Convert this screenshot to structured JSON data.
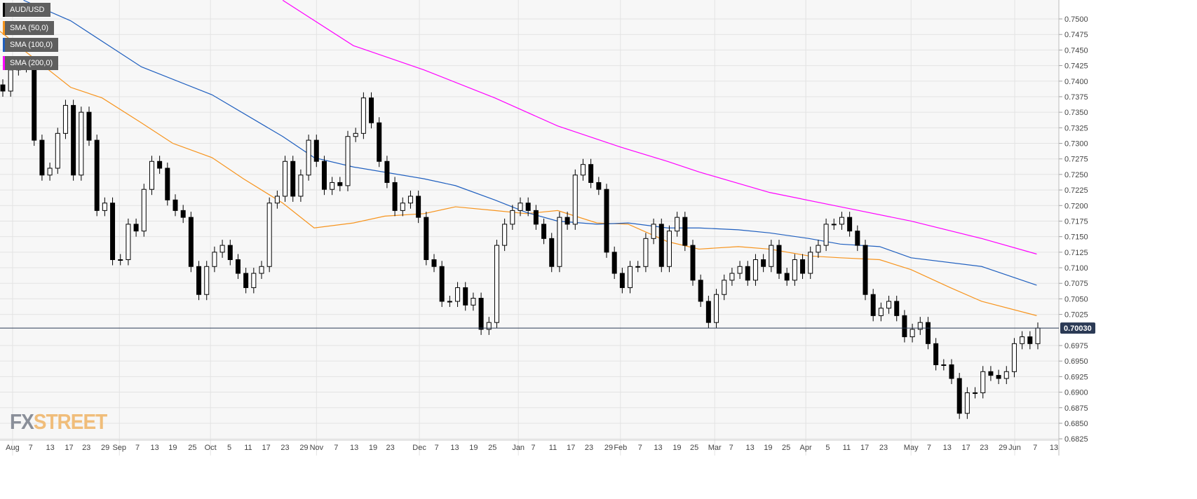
{
  "chart_data": {
    "type": "candlestick",
    "title": "AUD/USD",
    "legend": [
      {
        "label": "AUD/USD",
        "color": "#000000"
      },
      {
        "label": "SMA (50,0)",
        "color": "#f7941d"
      },
      {
        "label": "SMA (100,0)",
        "color": "#1f5fbf"
      },
      {
        "label": "SMA (200,0)",
        "color": "#ff00ff"
      }
    ],
    "legend_position": "top-left",
    "ylim": [
      0.6815,
      0.752
    ],
    "y_ticks": [
      "0.7500",
      "0.7475",
      "0.7450",
      "0.7425",
      "0.7400",
      "0.7375",
      "0.7350",
      "0.7325",
      "0.7300",
      "0.7275",
      "0.7250",
      "0.7225",
      "0.7200",
      "0.7175",
      "0.7150",
      "0.7125",
      "0.7100",
      "0.7075",
      "0.7050",
      "0.7025",
      "0.6975",
      "0.6950",
      "0.6925",
      "0.6900",
      "0.6875",
      "0.6850",
      "0.6825"
    ],
    "current_price": {
      "label": "0.70030",
      "value": 0.7003
    },
    "x_ticks": [
      [
        "Aug",
        1.6
      ],
      [
        "7",
        3.9
      ],
      [
        "13",
        6.4
      ],
      [
        "17",
        8.8
      ],
      [
        "23",
        11
      ],
      [
        "29",
        13.4
      ],
      [
        "Sep",
        15.2
      ],
      [
        "7",
        17.5
      ],
      [
        "13",
        19.7
      ],
      [
        "19",
        22
      ],
      [
        "25",
        24.5
      ],
      [
        "Oct",
        26.8
      ],
      [
        "5",
        29.2
      ],
      [
        "11",
        31.6
      ],
      [
        "17",
        33.9
      ],
      [
        "23",
        36.3
      ],
      [
        "29",
        38.7
      ],
      [
        "Nov",
        40.3
      ],
      [
        "7",
        42.8
      ],
      [
        "13",
        45.1
      ],
      [
        "19",
        47.5
      ],
      [
        "23",
        49.7
      ],
      [
        "Dec",
        53.4
      ],
      [
        "7",
        55.6
      ],
      [
        "13",
        57.9
      ],
      [
        "19",
        60.3
      ],
      [
        "25",
        62.7
      ],
      [
        "Jan",
        66
      ],
      [
        "7",
        67.9
      ],
      [
        "11",
        70.4
      ],
      [
        "17",
        72.7
      ],
      [
        "23",
        75
      ],
      [
        "29",
        77.5
      ],
      [
        "Feb",
        79
      ],
      [
        "7",
        81.5
      ],
      [
        "13",
        83.8
      ],
      [
        "19",
        86.2
      ],
      [
        "25",
        88.4
      ],
      [
        "Mar",
        91
      ],
      [
        "7",
        93.1
      ],
      [
        "13",
        95.5
      ],
      [
        "19",
        97.8
      ],
      [
        "25",
        100.1
      ],
      [
        "Apr",
        102.6
      ],
      [
        "5",
        105.4
      ],
      [
        "11",
        107.8
      ],
      [
        "17",
        110.1
      ],
      [
        "23",
        112.5
      ],
      [
        "May",
        116
      ],
      [
        "7",
        118.3
      ],
      [
        "13",
        120.6
      ],
      [
        "17",
        123
      ],
      [
        "23",
        125.3
      ],
      [
        "29",
        127.7
      ],
      [
        "Jun",
        129.2
      ],
      [
        "7",
        131.8
      ],
      [
        "13",
        134.2
      ]
    ],
    "closes": [
      0.7384,
      0.7418,
      0.7423,
      0.7429,
      0.7305,
      0.7249,
      0.726,
      0.7316,
      0.7361,
      0.7249,
      0.735,
      0.7305,
      0.7192,
      0.7204,
      0.7113,
      0.7113,
      0.717,
      0.7159,
      0.7226,
      0.7271,
      0.726,
      0.7209,
      0.7192,
      0.7181,
      0.7102,
      0.7057,
      0.7102,
      0.7125,
      0.7136,
      0.7113,
      0.7091,
      0.7068,
      0.7091,
      0.7102,
      0.7204,
      0.7215,
      0.7271,
      0.7215,
      0.7249,
      0.7305,
      0.7271,
      0.7226,
      0.7237,
      0.7232,
      0.7311,
      0.7316,
      0.7373,
      0.7333,
      0.7271,
      0.7237,
      0.7192,
      0.7204,
      0.7215,
      0.7181,
      0.7113,
      0.7102,
      0.7046,
      0.7046,
      0.7068,
      0.704,
      0.7051,
      0.7001,
      0.7012,
      0.7136,
      0.717,
      0.7192,
      0.7204,
      0.7192,
      0.717,
      0.7147,
      0.7102,
      0.7181,
      0.717,
      0.7249,
      0.7266,
      0.7237,
      0.7226,
      0.7125,
      0.7091,
      0.7068,
      0.7102,
      0.7102,
      0.7147,
      0.717,
      0.7102,
      0.7159,
      0.7181,
      0.7136,
      0.708,
      0.7046,
      0.7012,
      0.7057,
      0.708,
      0.7091,
      0.7102,
      0.708,
      0.7113,
      0.7102,
      0.7136,
      0.7091,
      0.708,
      0.7113,
      0.7091,
      0.7125,
      0.7136,
      0.717,
      0.717,
      0.7181,
      0.7159,
      0.7136,
      0.7057,
      0.7023,
      0.7035,
      0.7046,
      0.7023,
      0.6989,
      0.7001,
      0.7012,
      0.6978,
      0.6944,
      0.6944,
      0.6922,
      0.6866,
      0.6899,
      0.6899,
      0.6933,
      0.6927,
      0.6922,
      0.6933,
      0.6978,
      0.6989,
      0.6978,
      0.7003
    ],
    "sma50": [
      [
        0,
        0.748
      ],
      [
        9,
        0.739
      ],
      [
        13,
        0.7373
      ],
      [
        18,
        0.7333
      ],
      [
        22,
        0.73
      ],
      [
        27,
        0.7277
      ],
      [
        31,
        0.7243
      ],
      [
        36,
        0.7204
      ],
      [
        40,
        0.7164
      ],
      [
        45,
        0.7172
      ],
      [
        49,
        0.7183
      ],
      [
        54,
        0.7187
      ],
      [
        58,
        0.7198
      ],
      [
        63,
        0.7192
      ],
      [
        67,
        0.7187
      ],
      [
        71,
        0.7192
      ],
      [
        76,
        0.7172
      ],
      [
        80,
        0.717
      ],
      [
        85,
        0.7142
      ],
      [
        89,
        0.713
      ],
      [
        94,
        0.7134
      ],
      [
        98,
        0.713
      ],
      [
        103,
        0.7119
      ],
      [
        107,
        0.7116
      ],
      [
        112,
        0.7113
      ],
      [
        116,
        0.7097
      ],
      [
        121,
        0.7068
      ],
      [
        125,
        0.7046
      ],
      [
        132,
        0.7023
      ]
    ],
    "sma100": [
      [
        3,
        0.753
      ],
      [
        9,
        0.7497
      ],
      [
        18,
        0.7423
      ],
      [
        27,
        0.7378
      ],
      [
        36,
        0.7311
      ],
      [
        40,
        0.7277
      ],
      [
        45,
        0.7262
      ],
      [
        54,
        0.7243
      ],
      [
        58,
        0.7232
      ],
      [
        63,
        0.7209
      ],
      [
        67,
        0.7189
      ],
      [
        71,
        0.7175
      ],
      [
        76,
        0.717
      ],
      [
        80,
        0.7172
      ],
      [
        85,
        0.7164
      ],
      [
        89,
        0.7164
      ],
      [
        94,
        0.7161
      ],
      [
        98,
        0.7156
      ],
      [
        103,
        0.7147
      ],
      [
        107,
        0.7138
      ],
      [
        112,
        0.7134
      ],
      [
        116,
        0.7116
      ],
      [
        125,
        0.7102
      ],
      [
        132,
        0.7072
      ]
    ],
    "sma200": [
      [
        36,
        0.753
      ],
      [
        45,
        0.7457
      ],
      [
        54,
        0.7418
      ],
      [
        63,
        0.7373
      ],
      [
        71,
        0.7328
      ],
      [
        79,
        0.7294
      ],
      [
        85,
        0.7271
      ],
      [
        89,
        0.7254
      ],
      [
        98,
        0.7221
      ],
      [
        107,
        0.7198
      ],
      [
        116,
        0.7175
      ],
      [
        125,
        0.7147
      ],
      [
        132,
        0.7122
      ]
    ]
  },
  "branding": {
    "logo_fx": "FX",
    "logo_street": "STREET"
  }
}
